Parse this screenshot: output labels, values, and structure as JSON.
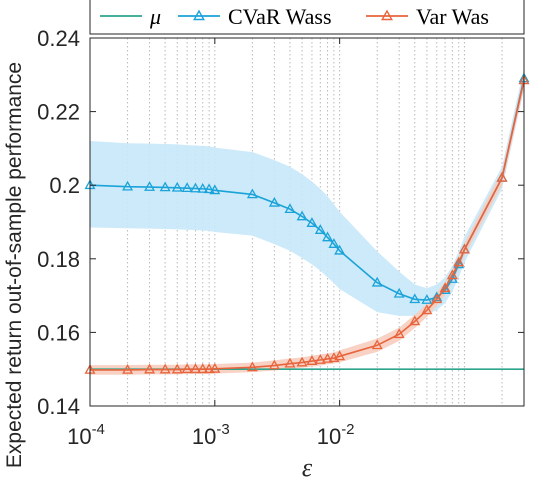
{
  "chart_data": {
    "type": "line",
    "xlabel": "ε",
    "ylabel": "Expected return out-of-sample performance",
    "xscale": "log",
    "xlim": [
      0.0001,
      0.3
    ],
    "ylim": [
      0.14,
      0.24
    ],
    "yticks": [
      0.14,
      0.16,
      0.18,
      0.2,
      0.22,
      0.24
    ],
    "ytick_labels": [
      "0.14",
      "0.16",
      "0.18",
      "0.2",
      "0.22",
      "0.24"
    ],
    "xticks": [
      {
        "value": 0.0001,
        "base": "10",
        "exp": "-4"
      },
      {
        "value": 0.001,
        "base": "10",
        "exp": "-3"
      },
      {
        "value": 0.01,
        "base": "10",
        "exp": "-2"
      }
    ],
    "grid": "x-minor-dotted",
    "legend_position": "top",
    "x": [
      0.0001,
      0.0002,
      0.0003,
      0.0004,
      0.0005,
      0.0006,
      0.0007,
      0.0008,
      0.0009,
      0.001,
      0.002,
      0.003,
      0.004,
      0.005,
      0.006,
      0.007,
      0.008,
      0.009,
      0.01,
      0.02,
      0.03,
      0.04,
      0.05,
      0.06,
      0.07,
      0.08,
      0.09,
      0.1,
      0.2,
      0.3
    ],
    "series": [
      {
        "name": "μ",
        "color": "#2ca58d",
        "marker": "none",
        "values": [
          0.15,
          0.15,
          0.15,
          0.15,
          0.15,
          0.15,
          0.15,
          0.15,
          0.15,
          0.15,
          0.15,
          0.15,
          0.15,
          0.15,
          0.15,
          0.15,
          0.15,
          0.15,
          0.15,
          0.15,
          0.15,
          0.15,
          0.15,
          0.15,
          0.15,
          0.15,
          0.15,
          0.15,
          0.15,
          0.15
        ]
      },
      {
        "name": "CVaR Wass",
        "color": "#1aa3d9",
        "band_color": "#c7e8f8",
        "marker": "triangle",
        "values": [
          0.2,
          0.1996,
          0.1995,
          0.1994,
          0.1993,
          0.1992,
          0.1991,
          0.199,
          0.1989,
          0.1986,
          0.1975,
          0.1952,
          0.1935,
          0.1915,
          0.1897,
          0.1878,
          0.1858,
          0.184,
          0.1822,
          0.1735,
          0.1705,
          0.169,
          0.1688,
          0.1695,
          0.1715,
          0.1745,
          0.1785,
          0.1825,
          0.202,
          0.229
        ],
        "band_lower": [
          0.1885,
          0.1883,
          0.1882,
          0.1881,
          0.188,
          0.1879,
          0.1878,
          0.1877,
          0.1876,
          0.1873,
          0.1863,
          0.184,
          0.1822,
          0.1802,
          0.1785,
          0.1768,
          0.175,
          0.1734,
          0.1718,
          0.1655,
          0.1645,
          0.1645,
          0.165,
          0.166,
          0.168,
          0.171,
          0.175,
          0.179,
          0.199,
          0.226
        ],
        "band_upper": [
          0.212,
          0.2114,
          0.2113,
          0.2112,
          0.2111,
          0.2109,
          0.2108,
          0.2107,
          0.2106,
          0.2102,
          0.209,
          0.2068,
          0.205,
          0.203,
          0.201,
          0.199,
          0.197,
          0.1948,
          0.1928,
          0.182,
          0.1765,
          0.173,
          0.172,
          0.173,
          0.175,
          0.178,
          0.182,
          0.186,
          0.205,
          0.232
        ]
      },
      {
        "name": "Var Was",
        "color": "#e8643c",
        "band_color": "#f7cdbe",
        "marker": "triangle",
        "values": [
          0.1498,
          0.1498,
          0.1499,
          0.1499,
          0.1499,
          0.15,
          0.15,
          0.15,
          0.15,
          0.1501,
          0.1505,
          0.151,
          0.1515,
          0.1518,
          0.1522,
          0.1525,
          0.1528,
          0.153,
          0.1535,
          0.1565,
          0.1595,
          0.163,
          0.166,
          0.169,
          0.172,
          0.1755,
          0.179,
          0.1825,
          0.202,
          0.2285
        ],
        "band_lower": [
          0.1485,
          0.1485,
          0.1486,
          0.1486,
          0.1486,
          0.1487,
          0.1487,
          0.1487,
          0.1487,
          0.1488,
          0.1492,
          0.1496,
          0.1501,
          0.1504,
          0.1507,
          0.151,
          0.1513,
          0.1515,
          0.1519,
          0.1547,
          0.1577,
          0.1612,
          0.1642,
          0.1672,
          0.1702,
          0.1737,
          0.1772,
          0.1807,
          0.2,
          0.2265
        ],
        "band_upper": [
          0.1511,
          0.1511,
          0.1512,
          0.1512,
          0.1512,
          0.1513,
          0.1513,
          0.1513,
          0.1513,
          0.1514,
          0.1518,
          0.1524,
          0.1529,
          0.1532,
          0.1537,
          0.154,
          0.1543,
          0.1545,
          0.1551,
          0.1583,
          0.1613,
          0.1648,
          0.1678,
          0.1708,
          0.1738,
          0.1773,
          0.1808,
          0.1843,
          0.204,
          0.2305
        ]
      }
    ]
  }
}
